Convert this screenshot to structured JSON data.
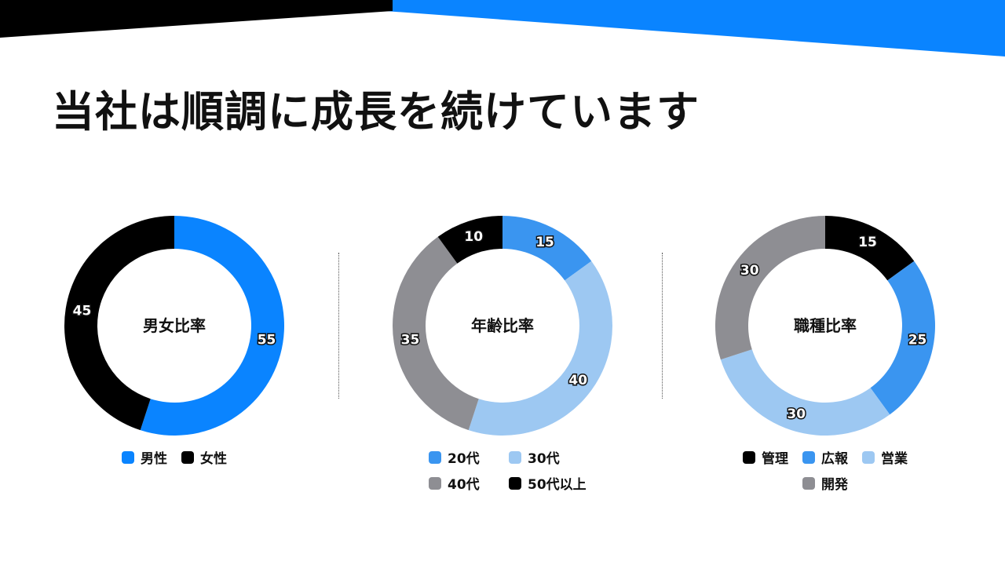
{
  "slide": {
    "title": "当社は順調に成長を続けています"
  },
  "colors": {
    "primary_blue": "#0A84FF",
    "black": "#000000"
  },
  "chart_data": [
    {
      "type": "pie",
      "donut": true,
      "center_label": "男女比率",
      "legend_placement": "bottom",
      "categories": [
        "男性",
        "女性"
      ],
      "values": [
        55,
        45
      ],
      "colors": [
        "#0A84FF",
        "#000000"
      ]
    },
    {
      "type": "pie",
      "donut": true,
      "center_label": "年齢比率",
      "legend_placement": "bottom",
      "categories": [
        "20代",
        "30代",
        "40代",
        "50代以上"
      ],
      "values": [
        15,
        40,
        35,
        10
      ],
      "colors": [
        "#3A95F0",
        "#9DC8F2",
        "#8E8E93",
        "#000000"
      ]
    },
    {
      "type": "pie",
      "donut": true,
      "center_label": "職種比率",
      "legend_placement": "bottom",
      "categories": [
        "管理",
        "広報",
        "営業",
        "開発"
      ],
      "values": [
        15,
        25,
        30,
        30
      ],
      "colors": [
        "#000000",
        "#3A95F0",
        "#9DC8F2",
        "#8E8E93"
      ]
    }
  ]
}
